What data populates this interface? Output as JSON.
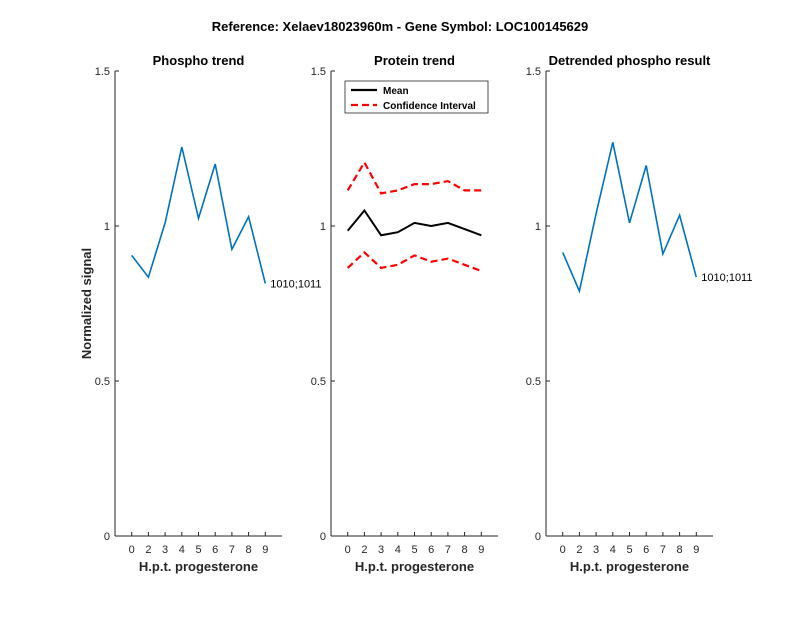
{
  "figure_title": "Reference:  Xelaev18023960m - Gene Symbol:  LOC100145629",
  "chart_data": [
    {
      "type": "line",
      "title": "Phospho trend",
      "xlabel": "H.p.t. progesterone",
      "ylabel": "Normalized signal",
      "categories": [
        "0",
        "2",
        "3",
        "4",
        "5",
        "6",
        "7",
        "8",
        "9"
      ],
      "ylim": [
        0,
        1.5
      ],
      "yticks": [
        "0",
        "0.5",
        "1",
        "1.5"
      ],
      "series": [
        {
          "color": "#0072BD",
          "style": "solid",
          "values": [
            0.905,
            0.835,
            1.01,
            1.255,
            1.025,
            1.2,
            0.925,
            1.03,
            0.815
          ]
        }
      ],
      "annotation": "1010;1011",
      "legend": null
    },
    {
      "type": "line",
      "title": "Protein trend",
      "xlabel": "H.p.t. progesterone",
      "ylabel": "",
      "categories": [
        "0",
        "2",
        "3",
        "4",
        "5",
        "6",
        "7",
        "8",
        "9"
      ],
      "ylim": [
        0,
        1.5
      ],
      "yticks": [
        "0",
        "0.5",
        "1",
        "1.5"
      ],
      "series": [
        {
          "name": "Mean",
          "color": "#000000",
          "style": "solid",
          "values": [
            0.985,
            1.05,
            0.97,
            0.98,
            1.01,
            1.0,
            1.01,
            0.99,
            0.97
          ]
        },
        {
          "name": "Confidence Interval",
          "color": "#FF0000",
          "style": "dashed",
          "values": [
            1.115,
            1.205,
            1.105,
            1.115,
            1.135,
            1.135,
            1.145,
            1.115,
            1.115
          ]
        },
        {
          "name": "",
          "color": "#FF0000",
          "style": "dashed",
          "values": [
            0.865,
            0.915,
            0.865,
            0.875,
            0.905,
            0.885,
            0.895,
            0.875,
            0.855
          ]
        }
      ],
      "annotation": "",
      "legend": {
        "position": "top-left",
        "entries": [
          "Mean",
          "Confidence Interval"
        ]
      }
    },
    {
      "type": "line",
      "title": "Detrended phospho result",
      "xlabel": "H.p.t. progesterone",
      "ylabel": "",
      "categories": [
        "0",
        "2",
        "3",
        "4",
        "5",
        "6",
        "7",
        "8",
        "9"
      ],
      "ylim": [
        0,
        1.5
      ],
      "yticks": [
        "0",
        "0.5",
        "1",
        "1.5"
      ],
      "series": [
        {
          "color": "#0072BD",
          "style": "solid",
          "values": [
            0.915,
            0.79,
            1.04,
            1.27,
            1.01,
            1.195,
            0.91,
            1.035,
            0.835
          ]
        }
      ],
      "annotation": "1010;1011",
      "legend": null
    }
  ]
}
